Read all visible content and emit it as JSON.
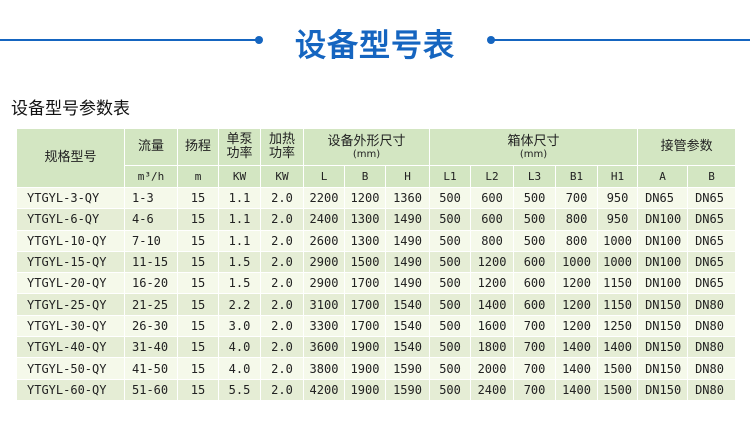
{
  "header": {
    "title": "设备型号表",
    "accent_color": "#1565c0"
  },
  "subtitle": "设备型号参数表",
  "table": {
    "groups": {
      "model": "规格型号",
      "flow": "流量",
      "head": "扬程",
      "pump_power": "单泵功率",
      "heat_power": "加热功率",
      "dims": "设备外形尺寸",
      "dims_unit": "(mm)",
      "tank": "箱体尺寸",
      "tank_unit": "(mm)",
      "pipe": "接管参数"
    },
    "units": [
      "m³/h",
      "m",
      "KW",
      "KW",
      "L",
      "B",
      "H",
      "L1",
      "L2",
      "L3",
      "B1",
      "H1",
      "A",
      "B"
    ],
    "rows": [
      [
        "YTGYL-3-QY",
        "1-3",
        "15",
        "1.1",
        "2.0",
        "2200",
        "1200",
        "1360",
        "500",
        "600",
        "500",
        "700",
        "950",
        "DN65",
        "DN65"
      ],
      [
        "YTGYL-6-QY",
        "4-6",
        "15",
        "1.1",
        "2.0",
        "2400",
        "1300",
        "1490",
        "500",
        "600",
        "500",
        "800",
        "950",
        "DN100",
        "DN65"
      ],
      [
        "YTGYL-10-QY",
        "7-10",
        "15",
        "1.1",
        "2.0",
        "2600",
        "1300",
        "1490",
        "500",
        "800",
        "500",
        "800",
        "1000",
        "DN100",
        "DN65"
      ],
      [
        "YTGYL-15-QY",
        "11-15",
        "15",
        "1.5",
        "2.0",
        "2900",
        "1500",
        "1490",
        "500",
        "1200",
        "600",
        "1000",
        "1000",
        "DN100",
        "DN65"
      ],
      [
        "YTGYL-20-QY",
        "16-20",
        "15",
        "1.5",
        "2.0",
        "2900",
        "1700",
        "1490",
        "500",
        "1200",
        "600",
        "1200",
        "1150",
        "DN100",
        "DN65"
      ],
      [
        "YTGYL-25-QY",
        "21-25",
        "15",
        "2.2",
        "2.0",
        "3100",
        "1700",
        "1540",
        "500",
        "1400",
        "600",
        "1200",
        "1150",
        "DN150",
        "DN80"
      ],
      [
        "YTGYL-30-QY",
        "26-30",
        "15",
        "3.0",
        "2.0",
        "3300",
        "1700",
        "1540",
        "500",
        "1600",
        "700",
        "1200",
        "1250",
        "DN150",
        "DN80"
      ],
      [
        "YTGYL-40-QY",
        "31-40",
        "15",
        "4.0",
        "2.0",
        "3600",
        "1900",
        "1540",
        "500",
        "1800",
        "700",
        "1400",
        "1400",
        "DN150",
        "DN80"
      ],
      [
        "YTGYL-50-QY",
        "41-50",
        "15",
        "4.0",
        "2.0",
        "3800",
        "1900",
        "1590",
        "500",
        "2000",
        "700",
        "1400",
        "1500",
        "DN150",
        "DN80"
      ],
      [
        "YTGYL-60-QY",
        "51-60",
        "15",
        "5.5",
        "2.0",
        "4200",
        "1900",
        "1590",
        "500",
        "2400",
        "700",
        "1400",
        "1500",
        "DN150",
        "DN80"
      ]
    ]
  }
}
